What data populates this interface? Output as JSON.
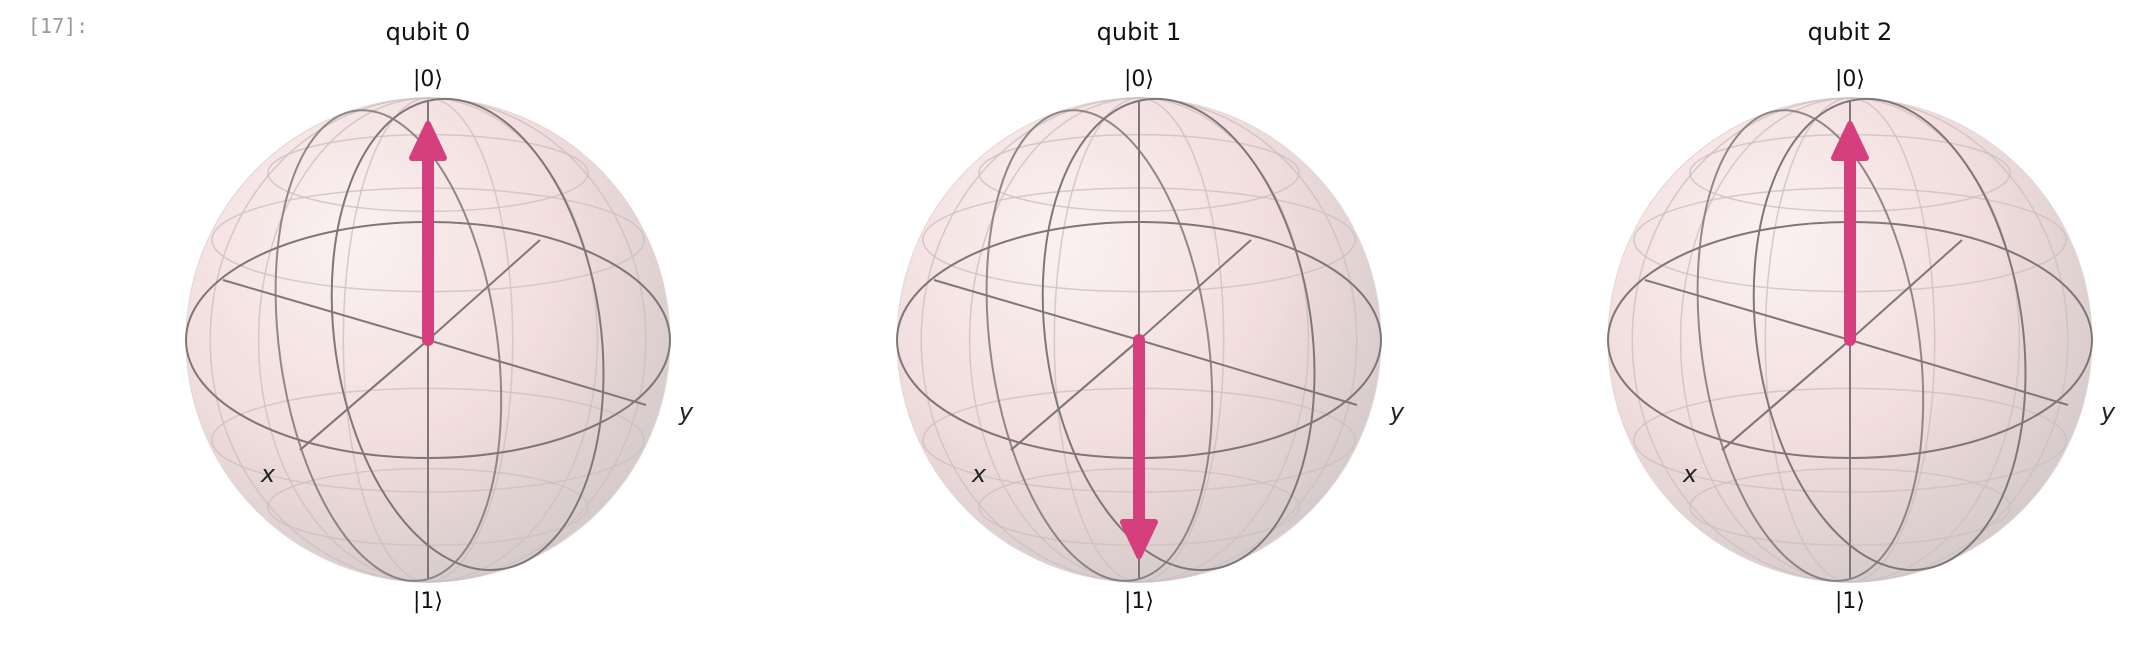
{
  "cell": {
    "prompt": "[17]:"
  },
  "colors": {
    "arrow": "#d63f7d",
    "wire": "#7f7777",
    "sphere_fill": "#f7e4e4",
    "sphere_shade": "#d8cccc",
    "background": "#ffffff"
  },
  "chart_data": [
    {
      "type": "bloch_sphere",
      "title": "qubit 0",
      "top_label": "|0⟩",
      "bottom_label": "|1⟩",
      "x_label": "x",
      "y_label": "y",
      "state": "|0⟩",
      "vector": [
        0,
        0,
        1
      ]
    },
    {
      "type": "bloch_sphere",
      "title": "qubit 1",
      "top_label": "|0⟩",
      "bottom_label": "|1⟩",
      "x_label": "x",
      "y_label": "y",
      "state": "|1⟩",
      "vector": [
        0,
        0,
        -1
      ]
    },
    {
      "type": "bloch_sphere",
      "title": "qubit 2",
      "top_label": "|0⟩",
      "bottom_label": "|1⟩",
      "x_label": "x",
      "y_label": "y",
      "state": "|0⟩",
      "vector": [
        0,
        0,
        1
      ]
    }
  ]
}
